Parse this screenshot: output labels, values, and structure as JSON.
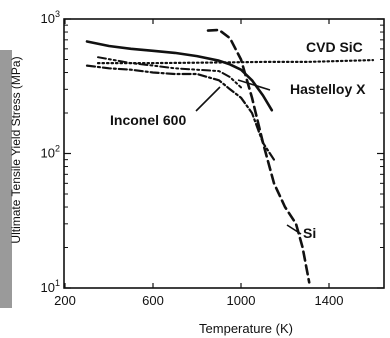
{
  "chart_data": {
    "type": "line",
    "xlabel": "Temperature (K)",
    "ylabel": "Ultimate Tensile Yield Stress (MPa)",
    "xlim": [
      200,
      1600
    ],
    "ylim": [
      10,
      1000
    ],
    "y_scale": "log",
    "x_ticks": [
      "200",
      "600",
      "1000",
      "1400"
    ],
    "x_tick_values": [
      200,
      600,
      1000,
      1400
    ],
    "y_ticks": [
      {
        "base": "10",
        "exp": "1",
        "value": 10
      },
      {
        "base": "10",
        "exp": "2",
        "value": 100
      },
      {
        "base": "10",
        "exp": "3",
        "value": 1000
      }
    ],
    "grid": false,
    "legend": "direct labels",
    "series": [
      {
        "name": "CVD SiC",
        "style": "dotted",
        "x": [
          350,
          600,
          900,
          1100,
          1300,
          1500,
          1600
        ],
        "y": [
          470,
          470,
          475,
          480,
          480,
          490,
          495
        ]
      },
      {
        "name": "Hastelloy X",
        "style": "solid",
        "x": [
          300,
          400,
          500,
          600,
          700,
          800,
          900,
          950,
          1000,
          1050,
          1100,
          1140
        ],
        "y": [
          680,
          630,
          600,
          580,
          560,
          530,
          490,
          460,
          420,
          350,
          270,
          210
        ]
      },
      {
        "name": "Inconel 600",
        "style": "dash-dot",
        "x": [
          300,
          400,
          500,
          600,
          700,
          800,
          900,
          950,
          1000,
          1050,
          1100,
          1150
        ],
        "y": [
          450,
          430,
          420,
          400,
          390,
          390,
          350,
          300,
          260,
          200,
          120,
          90
        ]
      },
      {
        "name": "",
        "style": "dash-dot-dot",
        "x": [
          350,
          500,
          600,
          700,
          800,
          900,
          950,
          1000
        ],
        "y": [
          520,
          470,
          450,
          430,
          420,
          410,
          370,
          310
        ]
      },
      {
        "name": "Si",
        "style": "dashed",
        "x": [
          850,
          900,
          950,
          1000,
          1050,
          1100,
          1150,
          1200,
          1250,
          1280,
          1310
        ],
        "y": [
          820,
          830,
          720,
          500,
          260,
          120,
          60,
          40,
          30,
          20,
          11
        ]
      }
    ],
    "annotations": [
      "CVD SiC",
      "Hastelloy X",
      "Inconel 600",
      "Si"
    ]
  }
}
